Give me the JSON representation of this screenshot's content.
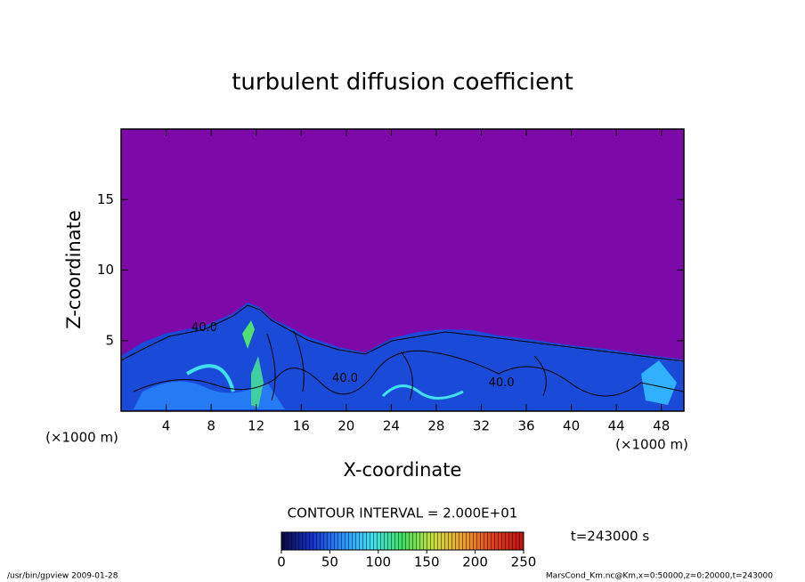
{
  "chart_data": {
    "type": "contour",
    "title": "turbulent diffusion coefficient",
    "xlabel": "X-coordinate",
    "ylabel": "Z-coordinate",
    "x_unit_left": "(×1000 m)",
    "x_unit_right": "(×1000 m)",
    "xlim": [
      0,
      50
    ],
    "xticks": [
      4,
      8,
      12,
      16,
      20,
      24,
      28,
      32,
      36,
      40,
      44,
      48
    ],
    "ylim": [
      0,
      20
    ],
    "yticks": [
      5,
      10,
      15
    ],
    "background_color": "#7d0aa8",
    "contour_labels": [
      {
        "x": 7.4,
        "y": 5.9,
        "value": 40,
        "label": "40.0"
      },
      {
        "x": 19.9,
        "y": 2.3,
        "value": 40,
        "label": "40.0"
      },
      {
        "x": 33.8,
        "y": 2.0,
        "value": 40,
        "label": "40.0"
      }
    ],
    "contour_interval_text": "CONTOUR INTERVAL = 2.000E+01",
    "time_text": "t=243000 s",
    "colorbar": {
      "clim": [
        0,
        250
      ],
      "ticks": [
        0,
        50,
        100,
        150,
        200,
        250
      ],
      "colors": [
        "#0a0a40",
        "#1530c8",
        "#2a90ff",
        "#40e0f0",
        "#40e060",
        "#c8e040",
        "#f0a030",
        "#e04020",
        "#c01010"
      ]
    },
    "footer_left": "/usr/bin/gpview  2009-01-28",
    "footer_right": "MarsCond_Km.nc@Km,x=0:50000,z=0:20000,t=243000"
  }
}
